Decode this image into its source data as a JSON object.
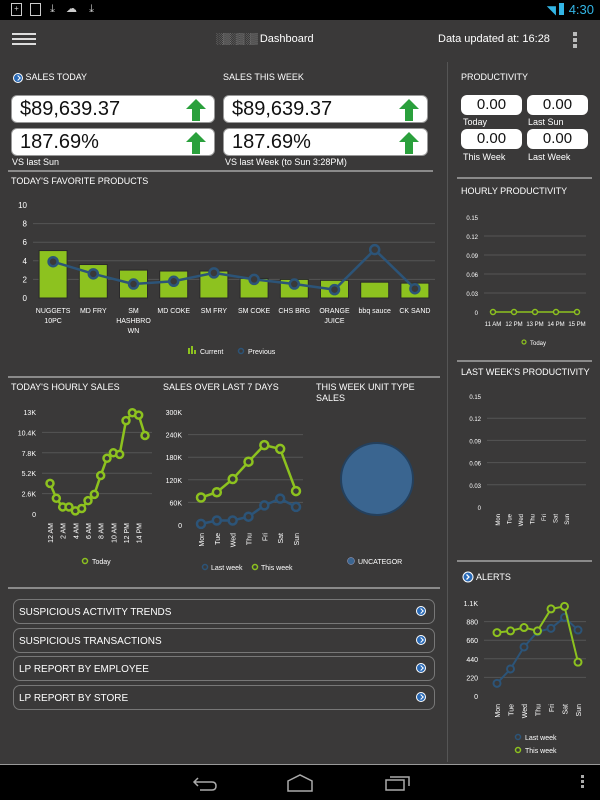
{
  "status_bar": {
    "time": "4:30",
    "notification_icons": [
      "phone-icon",
      "image-icon",
      "download-icon",
      "cloud-upload-icon",
      "download-icon"
    ]
  },
  "header": {
    "title_obscured": "░▒░▒░▒",
    "title": "Dashboard",
    "updated": "Data updated at: 16:28"
  },
  "sales_today": {
    "title": "SALES TODAY",
    "amount": "$89,639.37",
    "percent": "187.69%",
    "caption": "VS last Sun"
  },
  "sales_week": {
    "title": "SALES THIS WEEK",
    "amount": "$89,639.37",
    "percent": "187.69%",
    "caption": "VS last Week (to Sun 3:28PM)"
  },
  "productivity": {
    "title": "PRODUCTIVITY",
    "items": [
      {
        "value": "0.00",
        "label": "Today"
      },
      {
        "value": "0.00",
        "label": "Last Sun"
      },
      {
        "value": "0.00",
        "label": "This Week"
      },
      {
        "value": "0.00",
        "label": "Last Week"
      }
    ]
  },
  "links": [
    {
      "label": "SUSPICIOUS ACTIVITY TRENDS"
    },
    {
      "label": "SUSPICIOUS TRANSACTIONS"
    },
    {
      "label": "LP REPORT BY EMPLOYEE"
    },
    {
      "label": "LP REPORT BY STORE"
    }
  ],
  "colors": {
    "green": "#8dc21f",
    "blue": "#2c5478",
    "bg": "#3a3939",
    "accent": "#33b5e5"
  },
  "chart_data": [
    {
      "id": "favorite_products",
      "type": "bar",
      "title": "TODAY'S FAVORITE PRODUCTS",
      "categories": [
        "NUGGETS 10PC",
        "MD FRY",
        "SM HASHBROWN",
        "MD COKE",
        "SM FRY",
        "SM COKE",
        "CHS BRG",
        "ORANGE JUICE",
        "bbq sauce",
        "CK SAND"
      ],
      "category_lines": [
        [
          "NUGGETS",
          "10PC"
        ],
        [
          "MD FRY"
        ],
        [
          "SM",
          "HASHBRO",
          "WN"
        ],
        [
          "MD COKE"
        ],
        [
          "SM FRY"
        ],
        [
          "SM COKE"
        ],
        [
          "CHS BRG"
        ],
        [
          "ORANGE",
          "JUICE"
        ],
        [
          "bbq sauce"
        ],
        [
          "CK SAND"
        ]
      ],
      "series": [
        {
          "name": "Current",
          "type": "bar",
          "values": [
            5.1,
            3.6,
            3.0,
            2.9,
            2.9,
            2.1,
            2.0,
            1.9,
            1.7,
            1.6
          ]
        },
        {
          "name": "Previous",
          "type": "line",
          "values": [
            3.9,
            2.6,
            1.5,
            1.8,
            2.7,
            2.0,
            1.5,
            0.9,
            5.2,
            1.0
          ]
        }
      ],
      "yticks": [
        "0",
        "2",
        "4",
        "6",
        "8",
        "10"
      ],
      "ylim": [
        0,
        10
      ],
      "legend": "bottom"
    },
    {
      "id": "hourly_sales",
      "type": "line",
      "title": "TODAY'S HOURLY SALES",
      "x": [
        "12 AM",
        "1 AM",
        "2 AM",
        "3 AM",
        "4 AM",
        "5 AM",
        "6 AM",
        "7 AM",
        "8 AM",
        "9 AM",
        "10 AM",
        "11 AM",
        "12 PM",
        "13 PM",
        "14 PM",
        "15 PM"
      ],
      "xticks": [
        "12 AM",
        "2 AM",
        "4 AM",
        "6 AM",
        "8 AM",
        "10 AM",
        "12 PM",
        "14 PM"
      ],
      "series": [
        {
          "name": "Today",
          "values": [
            3900,
            2000,
            900,
            900,
            400,
            700,
            1700,
            2500,
            4900,
            7100,
            7800,
            7600,
            11900,
            12900,
            12600,
            10000
          ]
        }
      ],
      "yticks": [
        "0",
        "2.6K",
        "5.2K",
        "7.8K",
        "10.4K",
        "13K"
      ],
      "ylim": [
        0,
        13000
      ],
      "legend": "bottom"
    },
    {
      "id": "last_7_days",
      "type": "line",
      "title": "SALES OVER LAST 7 DAYS",
      "x": [
        "Mon",
        "Tue",
        "Wed",
        "Thu",
        "Fri",
        "Sat",
        "Sun"
      ],
      "series": [
        {
          "name": "Last week",
          "values": [
            3000,
            12000,
            12000,
            22000,
            52000,
            70000,
            48000
          ]
        },
        {
          "name": "This week",
          "values": [
            73000,
            87000,
            122000,
            168000,
            212000,
            202000,
            90000
          ]
        }
      ],
      "yticks": [
        "0",
        "60K",
        "120K",
        "180K",
        "240K",
        "300K"
      ],
      "ylim": [
        0,
        300000
      ],
      "legend": "bottom"
    },
    {
      "id": "unit_type_sales",
      "type": "pie",
      "title": "THIS WEEK UNIT TYPE SALES",
      "labels": [
        "UNCATEGOR"
      ],
      "values": [
        100
      ],
      "legend": "bottom"
    },
    {
      "id": "hourly_productivity",
      "type": "line",
      "title": "HOURLY PRODUCTIVITY",
      "x": [
        "11 AM",
        "12 PM",
        "13 PM",
        "14 PM",
        "15 PM"
      ],
      "series": [
        {
          "name": "Today",
          "values": [
            0,
            0,
            0,
            0,
            0
          ]
        }
      ],
      "yticks": [
        "0",
        "0.03",
        "0.06",
        "0.09",
        "0.12",
        "0.15"
      ],
      "ylim": [
        0,
        0.15
      ],
      "legend": "bottom"
    },
    {
      "id": "last_week_productivity",
      "type": "line",
      "title": "LAST WEEK'S PRODUCTIVITY",
      "x": [
        "Mon",
        "Tue",
        "Wed",
        "Thu",
        "Fri",
        "Sat",
        "Sun"
      ],
      "series": [],
      "yticks": [
        "0",
        "0.03",
        "0.06",
        "0.09",
        "0.12",
        "0.15"
      ],
      "ylim": [
        0,
        0.15
      ]
    },
    {
      "id": "alerts",
      "type": "line",
      "title": "ALERTS",
      "x": [
        "Mon",
        "Tue",
        "Wed",
        "Thu",
        "Fri",
        "Sat",
        "Sun"
      ],
      "series": [
        {
          "name": "Last week",
          "values": [
            150,
            320,
            580,
            760,
            800,
            930,
            780
          ]
        },
        {
          "name": "This week",
          "values": [
            750,
            770,
            810,
            770,
            1030,
            1060,
            400
          ]
        }
      ],
      "yticks": [
        "0",
        "220",
        "440",
        "660",
        "880",
        "1.1K"
      ],
      "ylim": [
        0,
        1100
      ],
      "legend": "bottom"
    }
  ]
}
